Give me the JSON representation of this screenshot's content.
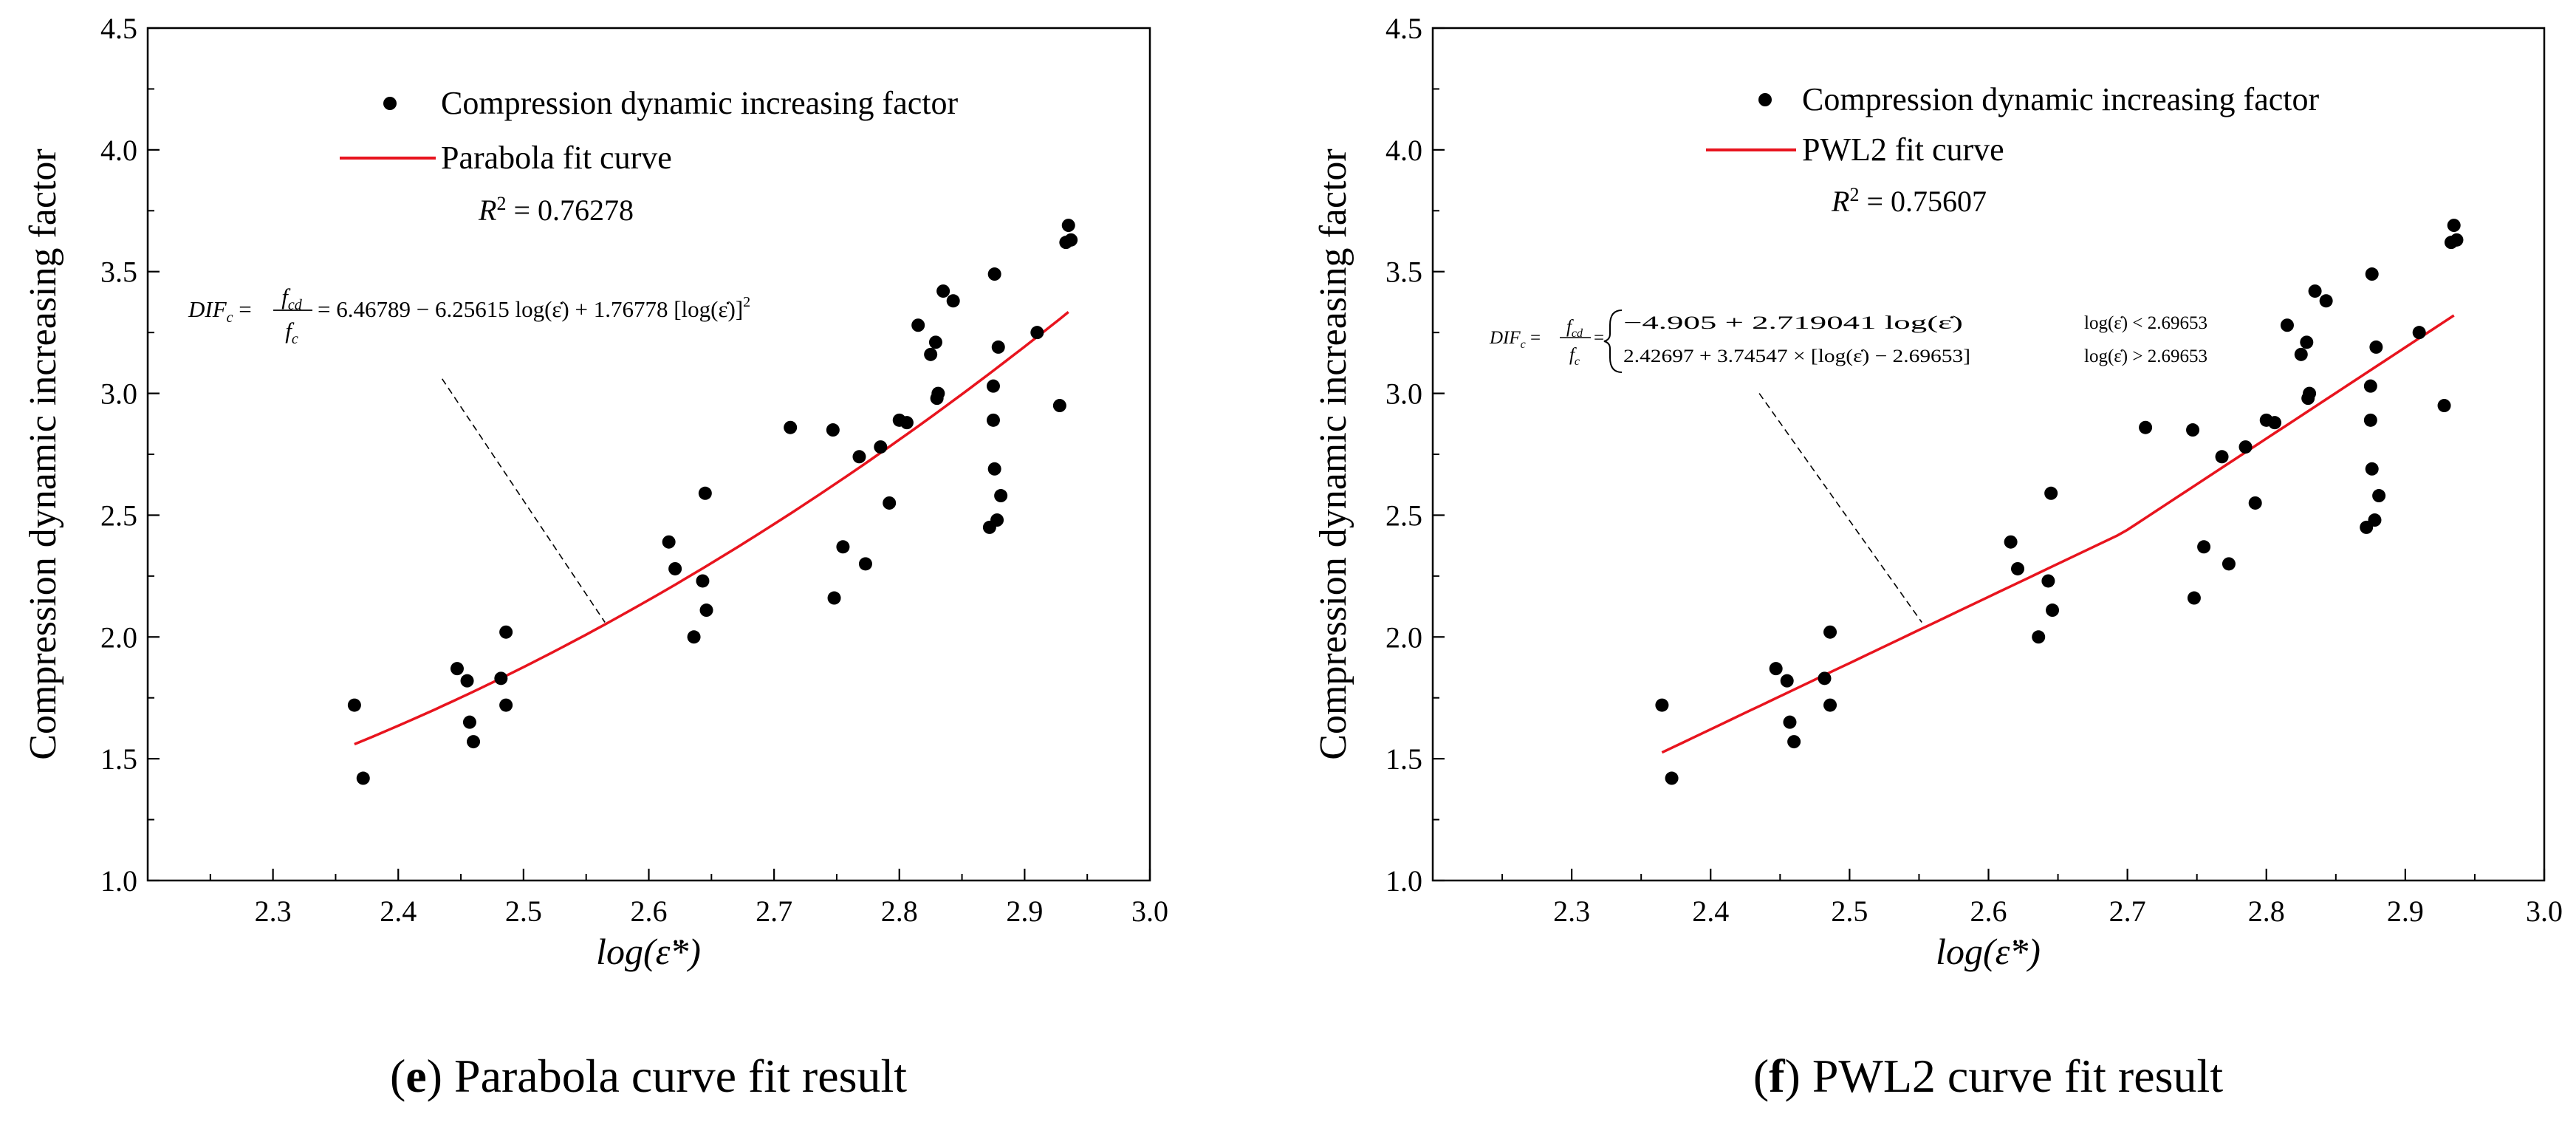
{
  "chart_data": [
    {
      "type": "scatter",
      "panel_id": "e",
      "caption_letter": "e",
      "caption_text": " Parabola curve fit result",
      "xlabel": "log(ε̈*)",
      "ylabel": "Compression dynamic increasing factor",
      "xlim": [
        2.2,
        3.0
      ],
      "ylim": [
        1.0,
        4.5
      ],
      "xticks": [
        2.3,
        2.4,
        2.5,
        2.6,
        2.7,
        2.8,
        2.9,
        3.0
      ],
      "xtick_labels": [
        "2.3",
        "2.4",
        "2.5",
        "2.6",
        "2.7",
        "2.8",
        "2.9",
        "3.0"
      ],
      "yticks": [
        1.0,
        1.5,
        2.0,
        2.5,
        3.0,
        3.5,
        4.0,
        4.5
      ],
      "ytick_labels": [
        "1.0",
        "1.5",
        "2.0",
        "2.5",
        "3.0",
        "3.5",
        "4.0",
        "4.5"
      ],
      "legend": [
        {
          "label": "Compression dynamic increasing factor",
          "marker": "dot",
          "color": "#000000"
        },
        {
          "label": "Parabola fit curve",
          "marker": "line",
          "color": "#e8141e"
        }
      ],
      "r2_label": "R",
      "r2_value": " = 0.76278",
      "equation": "DIF_c = f_cd / f_c = 6.46789 − 6.25615 log(ε̇) + 1.76778 [log(ε̇)]²",
      "equation_parts": {
        "lhs": "DIF",
        "lhs_sub": "c",
        "num": "f",
        "num_sub": "cd",
        "den": "f",
        "den_sub": "c",
        "rhs": "= 6.46789 − 6.25615 log(ε̇) + 1.76778 [log(ε̇)]",
        "rhs_sup": "2"
      },
      "fit": {
        "kind": "parabola",
        "a": 6.46789,
        "b": -6.25615,
        "c": 1.76778,
        "x_range": [
          2.365,
          2.935
        ]
      },
      "pointer": {
        "from": [
          2.435,
          3.06
        ],
        "to": [
          2.565,
          2.06
        ]
      },
      "series": [
        {
          "name": "Compression dynamic increasing factor",
          "points": [
            [
              2.365,
              1.72
            ],
            [
              2.372,
              1.42
            ],
            [
              2.447,
              1.87
            ],
            [
              2.455,
              1.82
            ],
            [
              2.457,
              1.65
            ],
            [
              2.46,
              1.57
            ],
            [
              2.482,
              1.83
            ],
            [
              2.486,
              2.02
            ],
            [
              2.486,
              1.72
            ],
            [
              2.616,
              2.39
            ],
            [
              2.621,
              2.28
            ],
            [
              2.636,
              2.0
            ],
            [
              2.643,
              2.23
            ],
            [
              2.645,
              2.59
            ],
            [
              2.646,
              2.11
            ],
            [
              2.713,
              2.86
            ],
            [
              2.747,
              2.85
            ],
            [
              2.748,
              2.16
            ],
            [
              2.755,
              2.37
            ],
            [
              2.768,
              2.74
            ],
            [
              2.773,
              2.3
            ],
            [
              2.785,
              2.78
            ],
            [
              2.792,
              2.55
            ],
            [
              2.8,
              2.89
            ],
            [
              2.806,
              2.88
            ],
            [
              2.815,
              3.28
            ],
            [
              2.825,
              3.16
            ],
            [
              2.829,
              3.21
            ],
            [
              2.83,
              2.98
            ],
            [
              2.831,
              3.0
            ],
            [
              2.835,
              3.42
            ],
            [
              2.843,
              3.38
            ],
            [
              2.872,
              2.45
            ],
            [
              2.875,
              3.03
            ],
            [
              2.875,
              2.89
            ],
            [
              2.876,
              3.49
            ],
            [
              2.876,
              2.69
            ],
            [
              2.878,
              2.48
            ],
            [
              2.879,
              3.19
            ],
            [
              2.881,
              2.58
            ],
            [
              2.91,
              3.25
            ],
            [
              2.928,
              2.95
            ],
            [
              2.933,
              3.62
            ],
            [
              2.935,
              3.69
            ],
            [
              2.937,
              3.63
            ]
          ]
        }
      ]
    },
    {
      "type": "scatter",
      "panel_id": "f",
      "caption_letter": "f",
      "caption_text": " PWL2 curve fit result",
      "xlabel": "log(ε̈*)",
      "ylabel": "Compression dynamic increasing factor",
      "xlim": [
        2.2,
        3.0
      ],
      "ylim": [
        1.0,
        4.5
      ],
      "xticks": [
        2.3,
        2.4,
        2.5,
        2.6,
        2.7,
        2.8,
        2.9,
        3.0
      ],
      "xtick_labels": [
        "2.3",
        "2.4",
        "2.5",
        "2.6",
        "2.7",
        "2.8",
        "2.9",
        "3.0"
      ],
      "yticks": [
        1.0,
        1.5,
        2.0,
        2.5,
        3.0,
        3.5,
        4.0,
        4.5
      ],
      "ytick_labels": [
        "1.0",
        "1.5",
        "2.0",
        "2.5",
        "3.0",
        "3.5",
        "4.0",
        "4.5"
      ],
      "legend": [
        {
          "label": "Compression dynamic increasing factor",
          "marker": "dot",
          "color": "#000000"
        },
        {
          "label": "PWL2 fit curve",
          "marker": "line",
          "color": "#e8141e"
        }
      ],
      "r2_label": "R",
      "r2_value": " = 0.75607",
      "equation": "DIF_c = f_cd / f_c = { −4.905 + 2.719041 log(ε̇), log(ε̇) < 2.69653 ; 2.42697 + 3.74547 × [log(ε̇) − 2.69653], log(ε̇) > 2.69653 }",
      "equation_parts": {
        "lhs": "DIF",
        "lhs_sub": "c",
        "num": "f",
        "num_sub": "cd",
        "den": "f",
        "den_sub": "c",
        "case1": "−4.905 + 2.719041 log(ε̇)",
        "case1_cond": "log(ε̇) < 2.69653",
        "case2": "2.42697 + 3.74547 × [log(ε̇) − 2.69653]",
        "case2_cond": "log(ε̇) > 2.69653"
      },
      "fit": {
        "kind": "pwl2",
        "x_break": 2.69653,
        "y_break": 2.42697,
        "slope1": 2.719041,
        "slope2": 3.74547,
        "x_range": [
          2.365,
          2.935
        ]
      },
      "pointer": {
        "from": [
          2.435,
          3.0
        ],
        "to": [
          2.552,
          2.06
        ]
      },
      "series": [
        {
          "name": "Compression dynamic increasing factor",
          "points": [
            [
              2.365,
              1.72
            ],
            [
              2.372,
              1.42
            ],
            [
              2.447,
              1.87
            ],
            [
              2.455,
              1.82
            ],
            [
              2.457,
              1.65
            ],
            [
              2.46,
              1.57
            ],
            [
              2.482,
              1.83
            ],
            [
              2.486,
              2.02
            ],
            [
              2.486,
              1.72
            ],
            [
              2.616,
              2.39
            ],
            [
              2.621,
              2.28
            ],
            [
              2.636,
              2.0
            ],
            [
              2.643,
              2.23
            ],
            [
              2.645,
              2.59
            ],
            [
              2.646,
              2.11
            ],
            [
              2.713,
              2.86
            ],
            [
              2.747,
              2.85
            ],
            [
              2.748,
              2.16
            ],
            [
              2.755,
              2.37
            ],
            [
              2.768,
              2.74
            ],
            [
              2.773,
              2.3
            ],
            [
              2.785,
              2.78
            ],
            [
              2.792,
              2.55
            ],
            [
              2.8,
              2.89
            ],
            [
              2.806,
              2.88
            ],
            [
              2.815,
              3.28
            ],
            [
              2.825,
              3.16
            ],
            [
              2.829,
              3.21
            ],
            [
              2.83,
              2.98
            ],
            [
              2.831,
              3.0
            ],
            [
              2.835,
              3.42
            ],
            [
              2.843,
              3.38
            ],
            [
              2.872,
              2.45
            ],
            [
              2.875,
              3.03
            ],
            [
              2.875,
              2.89
            ],
            [
              2.876,
              3.49
            ],
            [
              2.876,
              2.69
            ],
            [
              2.878,
              2.48
            ],
            [
              2.879,
              3.19
            ],
            [
              2.881,
              2.58
            ],
            [
              2.91,
              3.25
            ],
            [
              2.928,
              2.95
            ],
            [
              2.933,
              3.62
            ],
            [
              2.935,
              3.69
            ],
            [
              2.937,
              3.63
            ]
          ]
        }
      ]
    }
  ]
}
